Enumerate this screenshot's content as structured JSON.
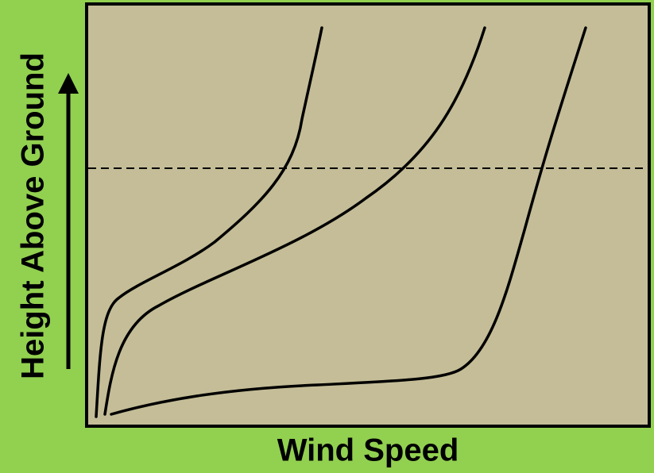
{
  "axes": {
    "y_label": "Height Above Ground",
    "x_label": "Wind Speed"
  }
}
